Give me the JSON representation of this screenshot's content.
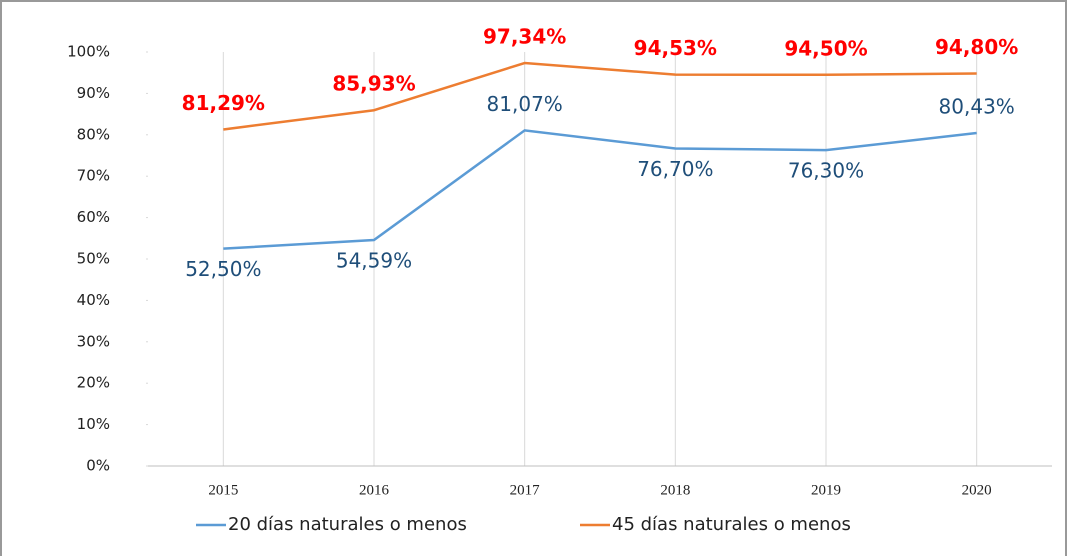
{
  "chart_data": {
    "type": "line",
    "categories": [
      "2015",
      "2016",
      "2017",
      "2018",
      "2019",
      "2020"
    ],
    "series": [
      {
        "name": "20 días naturales o menos",
        "color": "#5b9bd5",
        "label_color": "#1f4e79",
        "values": [
          52.5,
          54.59,
          81.07,
          76.7,
          76.3,
          80.43
        ],
        "value_labels": [
          "52,50%",
          "54,59%",
          "81,07%",
          "76,70%",
          "76,30%",
          "80,43%"
        ]
      },
      {
        "name": "45 días naturales o menos",
        "color": "#ed7d31",
        "label_color": "#ff0000",
        "values": [
          81.29,
          85.93,
          97.34,
          94.53,
          94.5,
          94.8
        ],
        "value_labels": [
          "81,29%",
          "85,93%",
          "97,34%",
          "94,53%",
          "94,50%",
          "94,80%"
        ]
      }
    ],
    "ylim": [
      0,
      100
    ],
    "yticks": [
      {
        "value": 0,
        "label": "0%"
      },
      {
        "value": 10,
        "label": "10%"
      },
      {
        "value": 20,
        "label": "20%"
      },
      {
        "value": 30,
        "label": "30%"
      },
      {
        "value": 40,
        "label": "40%"
      },
      {
        "value": 50,
        "label": "50%"
      },
      {
        "value": 60,
        "label": "60%"
      },
      {
        "value": 70,
        "label": "70%"
      },
      {
        "value": 80,
        "label": "80%"
      },
      {
        "value": 90,
        "label": "90%"
      },
      {
        "value": 100,
        "label": "100%"
      }
    ],
    "grid": true,
    "legend": "bottom"
  }
}
